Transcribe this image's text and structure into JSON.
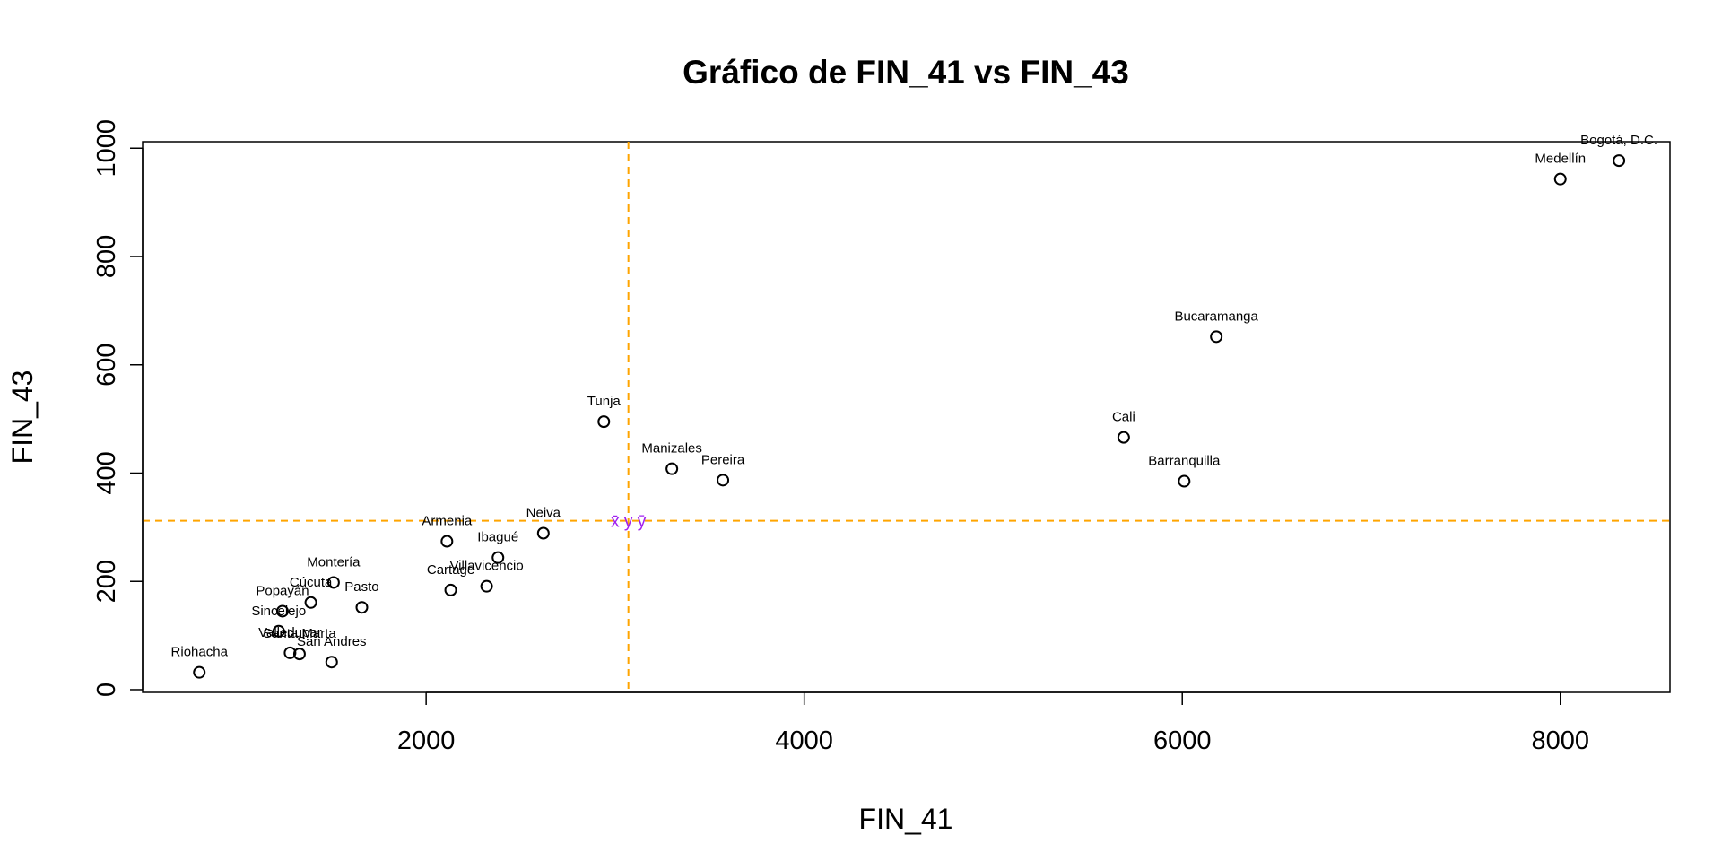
{
  "chart_data": {
    "type": "scatter",
    "title": "Gráfico de FIN_41 vs FIN_43",
    "xlabel": "FIN_41",
    "ylabel": "FIN_43",
    "xlim": [
      500,
      8580
    ],
    "ylim": [
      -5,
      1012
    ],
    "x_ticks": [
      2000,
      4000,
      6000,
      8000
    ],
    "y_ticks": [
      0,
      200,
      400,
      600,
      800,
      1000
    ],
    "x_tick_labels": [
      "2000",
      "4000",
      "6000",
      "8000"
    ],
    "y_tick_labels": [
      "0",
      "200",
      "400",
      "600",
      "800",
      "1000"
    ],
    "grid": false,
    "legend": "none",
    "point_color": "#000000",
    "mean_line_color": "#ffa500",
    "mean_label_color": "#a020f0",
    "mean_x": 3070,
    "mean_y": 312,
    "mean_label": "x̄ y ȳ",
    "points": [
      {
        "label": "Bogotá, D.C.",
        "x": 8310,
        "y": 977
      },
      {
        "label": "Medellín",
        "x": 8000,
        "y": 943
      },
      {
        "label": "Bucaramanga",
        "x": 6180,
        "y": 652
      },
      {
        "label": "Cali",
        "x": 5690,
        "y": 466
      },
      {
        "label": "Barranquilla",
        "x": 6010,
        "y": 385
      },
      {
        "label": "Tunja",
        "x": 2940,
        "y": 495
      },
      {
        "label": "Manizales",
        "x": 3300,
        "y": 408
      },
      {
        "label": "Pereira",
        "x": 3570,
        "y": 387
      },
      {
        "label": "Neiva",
        "x": 2620,
        "y": 289
      },
      {
        "label": "Armenia",
        "x": 2110,
        "y": 274
      },
      {
        "label": "Ibagué",
        "x": 2380,
        "y": 244
      },
      {
        "label": "Villavicencio",
        "x": 2320,
        "y": 191
      },
      {
        "label": "Cartage",
        "x": 2130,
        "y": 184
      },
      {
        "label": "Montería",
        "x": 1510,
        "y": 198
      },
      {
        "label": "Cúcuta",
        "x": 1390,
        "y": 161
      },
      {
        "label": "Pasto",
        "x": 1660,
        "y": 152
      },
      {
        "label": "Popayán",
        "x": 1240,
        "y": 145
      },
      {
        "label": "Sincelejo",
        "x": 1220,
        "y": 108
      },
      {
        "label": "Valledupar",
        "x": 1280,
        "y": 68
      },
      {
        "label": "Santa Marta",
        "x": 1330,
        "y": 66
      },
      {
        "label": "San Andres",
        "x": 1500,
        "y": 51
      },
      {
        "label": "Riohacha",
        "x": 800,
        "y": 32
      }
    ]
  }
}
